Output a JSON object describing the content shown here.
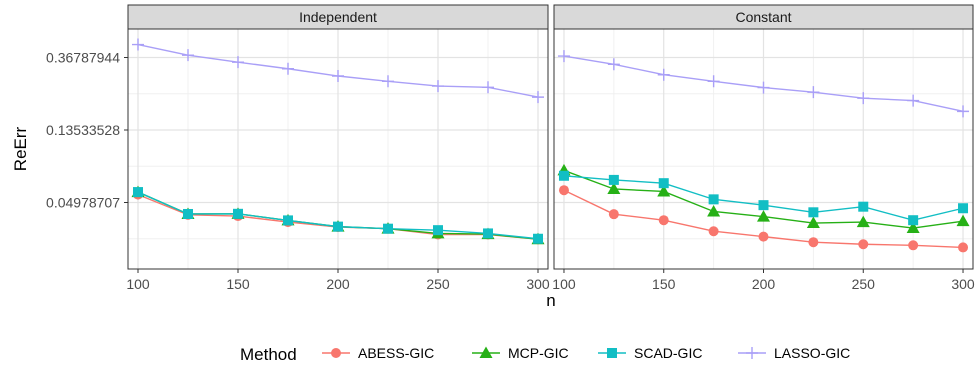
{
  "chart_data": {
    "type": "line",
    "xlabel": "n",
    "ylabel": "ReErr",
    "y_scale": "log",
    "y_ticks": [
      0.04978707,
      0.13533528,
      0.36787944
    ],
    "y_tick_labels": [
      "0.04978707",
      "0.13533528",
      "0.36787944"
    ],
    "x_ticks": [
      100,
      150,
      200,
      250,
      300
    ],
    "x_tick_labels": [
      "100",
      "150",
      "200",
      "250",
      "300"
    ],
    "x": [
      100,
      125,
      150,
      175,
      200,
      225,
      250,
      275,
      300
    ],
    "xlim": [
      95,
      305
    ],
    "ylim": [
      0.0199,
      0.545
    ],
    "grid": true,
    "legend": {
      "title": "Method",
      "position": "bottom",
      "entries": [
        "ABESS-GIC",
        "MCP-GIC",
        "SCAD-GIC",
        "LASSO-GIC"
      ]
    },
    "colors": {
      "ABESS-GIC": "#F8766D",
      "MCP-GIC": "#26B016",
      "SCAD-GIC": "#12BEC4",
      "LASSO-GIC": "#A99FF7"
    },
    "markers": {
      "ABESS-GIC": "circle",
      "MCP-GIC": "triangle",
      "SCAD-GIC": "square",
      "LASSO-GIC": "plus"
    },
    "panels": [
      {
        "strip": "Independent",
        "series": [
          {
            "name": "ABESS-GIC",
            "values": [
              0.0555,
              0.042,
              0.0413,
              0.038,
              0.0355,
              0.0347,
              0.032,
              0.032,
              0.03
            ]
          },
          {
            "name": "MCP-GIC",
            "values": [
              0.0575,
              0.0425,
              0.0426,
              0.0389,
              0.0357,
              0.0347,
              0.0325,
              0.0322,
              0.03
            ]
          },
          {
            "name": "SCAD-GIC",
            "values": [
              0.0575,
              0.0425,
              0.0426,
              0.0389,
              0.0357,
              0.0347,
              0.034,
              0.0325,
              0.0302
            ]
          },
          {
            "name": "LASSO-GIC",
            "values": [
              0.44,
              0.38,
              0.345,
              0.315,
              0.285,
              0.265,
              0.248,
              0.244,
              0.213
            ]
          }
        ]
      },
      {
        "strip": "Constant",
        "series": [
          {
            "name": "ABESS-GIC",
            "values": [
              0.059,
              0.0424,
              0.039,
              0.0335,
              0.0311,
              0.0288,
              0.028,
              0.0276,
              0.0268
            ]
          },
          {
            "name": "MCP-GIC",
            "values": [
              0.0775,
              0.06,
              0.058,
              0.044,
              0.041,
              0.0375,
              0.038,
              0.035,
              0.0385
            ]
          },
          {
            "name": "SCAD-GIC",
            "values": [
              0.072,
              0.068,
              0.065,
              0.052,
              0.048,
              0.0435,
              0.047,
              0.039,
              0.046
            ]
          },
          {
            "name": "LASSO-GIC",
            "values": [
              0.375,
              0.335,
              0.29,
              0.265,
              0.243,
              0.228,
              0.21,
              0.203,
              0.175
            ]
          }
        ]
      }
    ]
  }
}
